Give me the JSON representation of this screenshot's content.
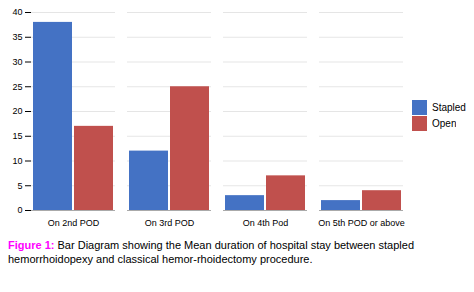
{
  "chart_data": {
    "type": "bar",
    "categories": [
      "On 2nd POD",
      "On 3rd POD",
      "On 4th Pod",
      "On 5th POD or above"
    ],
    "series": [
      {
        "name": "Stapled",
        "color": "#4472c4",
        "values": [
          38,
          12,
          3,
          2
        ]
      },
      {
        "name": "Open",
        "color": "#c0504d",
        "values": [
          17,
          25,
          7,
          4
        ]
      }
    ],
    "ylim": [
      0,
      40
    ],
    "yticks": [
      0,
      5,
      10,
      15,
      20,
      25,
      30,
      35,
      40
    ],
    "grid": true,
    "legend": "right",
    "annotations": [
      {
        "text": "Figure 1:",
        "color": "#ff00ff"
      },
      {
        "text": "Bar Diagram showing the Mean duration of hospital stay between stapled hemorrhoidopexy and classical hemor-rhoidectomy procedure.",
        "color": "#000000"
      }
    ]
  }
}
